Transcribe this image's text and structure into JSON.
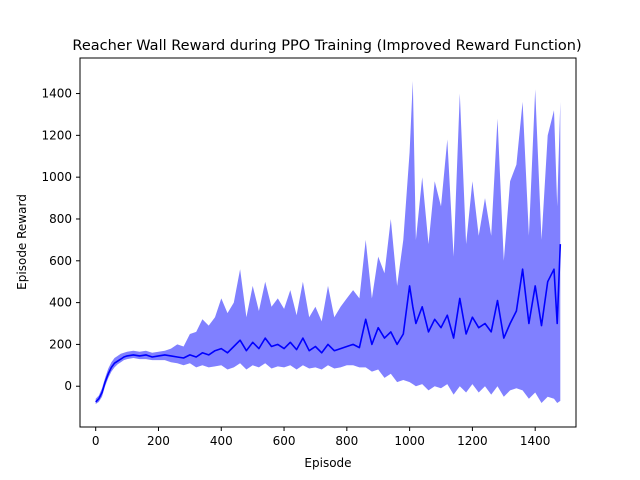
{
  "chart_data": {
    "type": "line",
    "title": "Reacher Wall Reward during PPO Training (Improved Reward Function)",
    "xlabel": "Episode",
    "ylabel": "Episode Reward",
    "xlim": [
      -50,
      1530
    ],
    "ylim": [
      -195,
      1570
    ],
    "xticks": [
      0,
      200,
      400,
      600,
      800,
      1000,
      1200,
      1400
    ],
    "yticks": [
      0,
      200,
      400,
      600,
      800,
      1000,
      1200,
      1400
    ],
    "grid": false,
    "legend": "none",
    "colors": {
      "line": "#0000ff",
      "band": "#8080ff",
      "axes": "#000000"
    },
    "series": [
      {
        "style": "mean line with shaded min-max band",
        "x": [
          0,
          10,
          20,
          30,
          40,
          50,
          60,
          70,
          80,
          90,
          100,
          120,
          140,
          160,
          180,
          200,
          220,
          240,
          260,
          280,
          300,
          320,
          340,
          360,
          380,
          400,
          420,
          440,
          460,
          480,
          500,
          520,
          540,
          560,
          580,
          600,
          620,
          640,
          660,
          680,
          700,
          720,
          740,
          760,
          780,
          800,
          820,
          840,
          860,
          880,
          900,
          920,
          940,
          960,
          980,
          1000,
          1010,
          1020,
          1040,
          1060,
          1080,
          1100,
          1120,
          1140,
          1160,
          1180,
          1200,
          1220,
          1240,
          1260,
          1280,
          1300,
          1320,
          1340,
          1360,
          1380,
          1400,
          1420,
          1440,
          1460,
          1470,
          1480
        ],
        "mean": [
          -75,
          -60,
          -30,
          20,
          60,
          90,
          110,
          120,
          130,
          140,
          145,
          150,
          145,
          150,
          140,
          145,
          150,
          145,
          140,
          135,
          150,
          140,
          160,
          150,
          170,
          180,
          160,
          190,
          220,
          170,
          210,
          180,
          230,
          190,
          200,
          180,
          210,
          175,
          230,
          170,
          190,
          160,
          200,
          170,
          180,
          190,
          200,
          185,
          320,
          200,
          280,
          230,
          260,
          200,
          250,
          480,
          380,
          300,
          380,
          260,
          320,
          280,
          340,
          230,
          420,
          250,
          330,
          280,
          300,
          260,
          410,
          230,
          300,
          360,
          560,
          300,
          480,
          290,
          500,
          560,
          300,
          680
        ],
        "lower": [
          -85,
          -75,
          -50,
          0,
          40,
          70,
          90,
          105,
          115,
          125,
          130,
          135,
          130,
          130,
          125,
          125,
          125,
          115,
          110,
          100,
          110,
          90,
          100,
          90,
          95,
          100,
          80,
          90,
          110,
          80,
          100,
          90,
          110,
          85,
          95,
          90,
          100,
          80,
          100,
          85,
          90,
          80,
          100,
          85,
          90,
          100,
          100,
          90,
          90,
          70,
          80,
          40,
          60,
          20,
          30,
          20,
          10,
          0,
          10,
          -20,
          0,
          -10,
          10,
          -40,
          0,
          -30,
          10,
          -30,
          0,
          -40,
          0,
          -50,
          -20,
          -10,
          -20,
          -60,
          -30,
          -80,
          -50,
          -60,
          -80,
          -70
        ],
        "upper": [
          -60,
          -45,
          -10,
          40,
          85,
          115,
          135,
          145,
          155,
          160,
          165,
          170,
          165,
          170,
          160,
          165,
          170,
          180,
          200,
          190,
          250,
          260,
          320,
          290,
          330,
          420,
          350,
          400,
          560,
          330,
          480,
          360,
          500,
          380,
          420,
          370,
          460,
          340,
          500,
          330,
          380,
          310,
          480,
          330,
          380,
          420,
          460,
          420,
          700,
          420,
          620,
          540,
          800,
          480,
          700,
          1120,
          1460,
          700,
          1000,
          680,
          980,
          860,
          1180,
          620,
          1400,
          680,
          980,
          720,
          900,
          720,
          1280,
          600,
          980,
          1060,
          1360,
          720,
          1420,
          700,
          1200,
          1320,
          860,
          1360
        ]
      }
    ]
  }
}
